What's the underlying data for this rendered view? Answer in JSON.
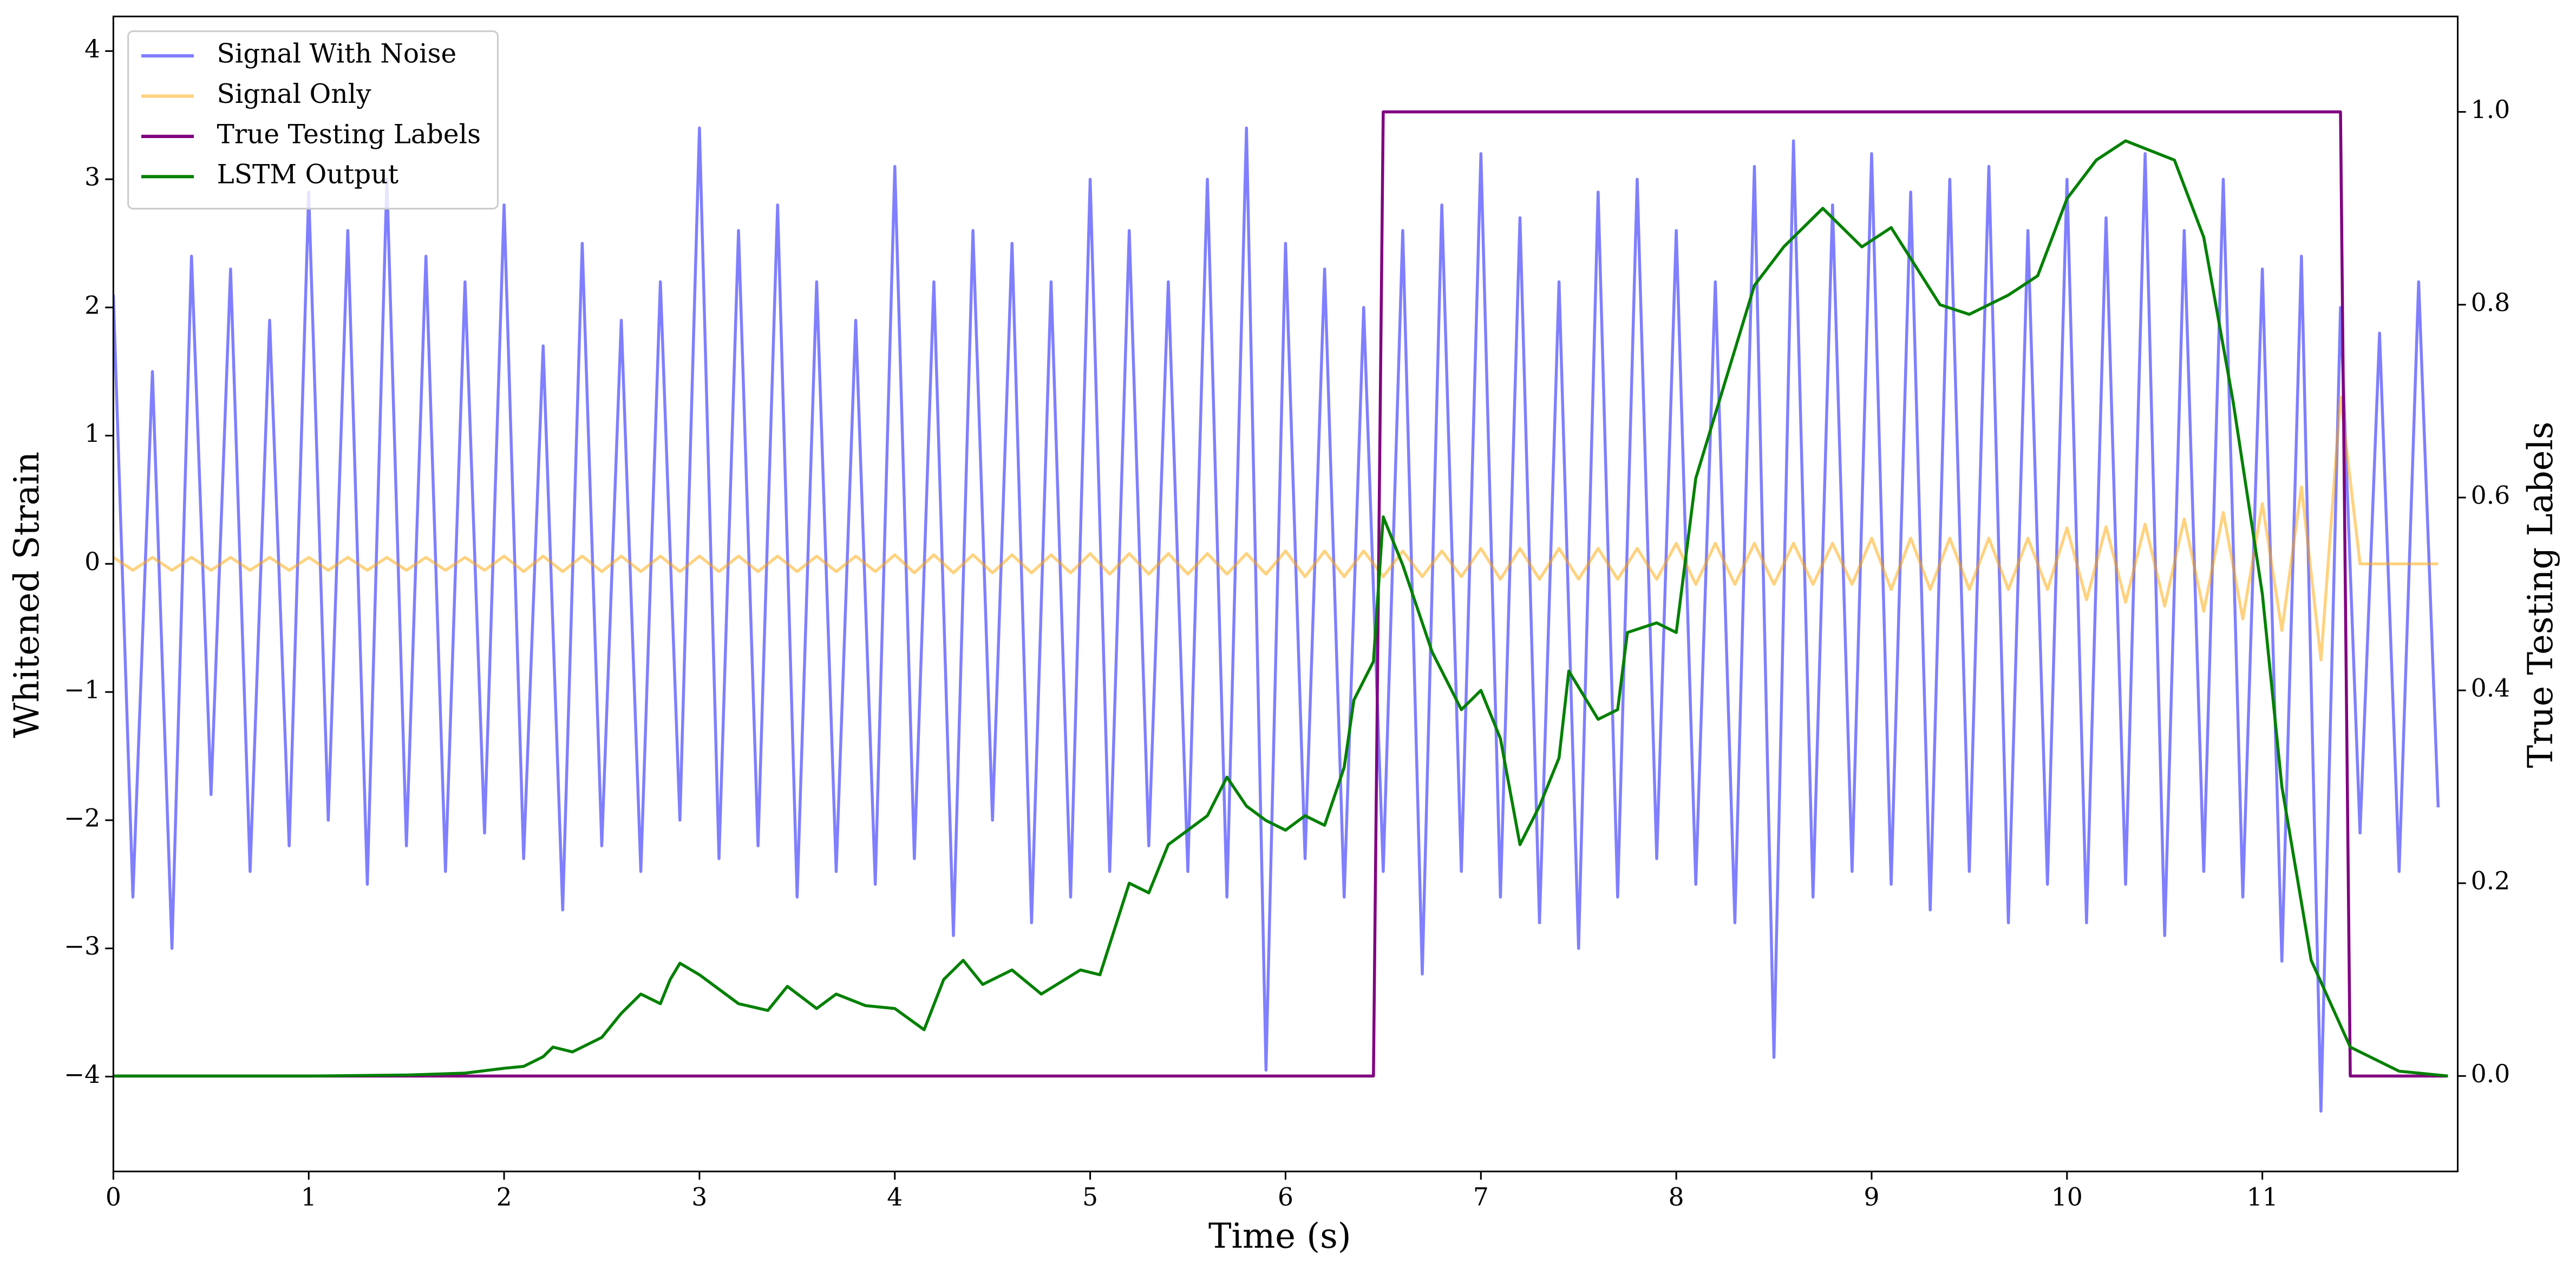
{
  "chart_data": {
    "type": "line",
    "xlabel": "Time (s)",
    "ylabel": "Whitened Strain",
    "y2label": "True Testing Labels",
    "x": [
      0,
      0.1,
      0.2,
      0.3,
      0.4,
      0.5,
      0.6,
      0.7,
      0.8,
      0.9,
      1,
      1.1,
      1.2,
      1.3,
      1.4,
      1.5,
      1.6,
      1.7,
      1.8,
      1.9,
      2,
      2.1,
      2.2,
      2.3,
      2.4,
      2.5,
      2.6,
      2.7,
      2.8,
      2.9,
      3,
      3.1,
      3.2,
      3.3,
      3.4,
      3.5,
      3.6,
      3.7,
      3.8,
      3.9,
      4,
      4.1,
      4.2,
      4.3,
      4.4,
      4.5,
      4.6,
      4.7,
      4.8,
      4.9,
      5,
      5.1,
      5.2,
      5.3,
      5.4,
      5.5,
      5.6,
      5.7,
      5.8,
      5.9,
      6,
      6.1,
      6.2,
      6.3,
      6.4,
      6.5,
      6.6,
      6.7,
      6.8,
      6.9,
      7,
      7.1,
      7.2,
      7.3,
      7.4,
      7.5,
      7.6,
      7.7,
      7.8,
      7.9,
      8,
      8.1,
      8.2,
      8.3,
      8.4,
      8.5,
      8.6,
      8.7,
      8.8,
      8.9,
      9,
      9.1,
      9.2,
      9.3,
      9.4,
      9.5,
      9.6,
      9.7,
      9.8,
      9.9,
      10,
      10.1,
      10.2,
      10.3,
      10.4,
      10.5,
      10.6,
      10.7,
      10.8,
      10.9,
      11,
      11.1,
      11.2,
      11.3,
      11.4,
      11.5,
      11.6,
      11.7,
      11.8,
      11.9
    ],
    "series": [
      {
        "name": "Signal With Noise",
        "color": "#0000ff",
        "alpha": 0.5,
        "values": [
          2.1,
          -2.6,
          1.5,
          -3.0,
          2.4,
          -1.8,
          2.3,
          -2.4,
          1.9,
          -2.2,
          2.9,
          -2.0,
          2.6,
          -2.5,
          3.0,
          -2.2,
          2.4,
          -2.4,
          2.2,
          -2.1,
          2.8,
          -2.3,
          1.7,
          -2.7,
          2.5,
          -2.2,
          1.9,
          -2.4,
          2.2,
          -2.0,
          3.4,
          -2.3,
          2.6,
          -2.2,
          2.8,
          -2.6,
          2.2,
          -2.4,
          1.9,
          -2.5,
          3.1,
          -2.3,
          2.2,
          -2.9,
          2.6,
          -2.0,
          2.5,
          -2.8,
          2.2,
          -2.6,
          3.0,
          -2.4,
          2.6,
          -2.2,
          2.2,
          -2.4,
          3.0,
          -2.6,
          3.4,
          -3.95,
          2.5,
          -2.3,
          2.3,
          -2.6,
          2.0,
          -2.4,
          2.6,
          -3.2,
          2.8,
          -2.4,
          3.2,
          -2.6,
          2.7,
          -2.8,
          2.2,
          -3.0,
          2.9,
          -2.6,
          3.0,
          -2.3,
          2.6,
          -2.5,
          2.2,
          -2.8,
          3.1,
          -3.85,
          3.3,
          -2.6,
          2.8,
          -2.4,
          3.2,
          -2.5,
          2.9,
          -2.7,
          3.0,
          -2.4,
          3.1,
          -2.8,
          2.6,
          -2.5,
          3.0,
          -2.8,
          2.7,
          -2.5,
          3.2,
          -2.9,
          2.6,
          -2.4,
          3.0,
          -2.6,
          2.3,
          -3.1,
          2.4,
          -4.27,
          2.0,
          -2.1,
          1.8,
          -2.4,
          2.2,
          -1.9
        ]
      },
      {
        "name": "Signal Only",
        "color": "#ffa500",
        "alpha": 0.5,
        "values": [
          0.05,
          -0.05,
          0.05,
          -0.05,
          0.05,
          -0.05,
          0.05,
          -0.05,
          0.05,
          -0.05,
          0.05,
          -0.05,
          0.05,
          -0.05,
          0.05,
          -0.05,
          0.05,
          -0.05,
          0.05,
          -0.05,
          0.06,
          -0.06,
          0.06,
          -0.06,
          0.06,
          -0.06,
          0.06,
          -0.06,
          0.06,
          -0.06,
          0.06,
          -0.06,
          0.06,
          -0.06,
          0.06,
          -0.06,
          0.06,
          -0.06,
          0.06,
          -0.06,
          0.07,
          -0.07,
          0.07,
          -0.07,
          0.07,
          -0.07,
          0.07,
          -0.07,
          0.07,
          -0.07,
          0.08,
          -0.08,
          0.08,
          -0.08,
          0.08,
          -0.08,
          0.08,
          -0.08,
          0.08,
          -0.08,
          0.1,
          -0.1,
          0.1,
          -0.1,
          0.1,
          -0.1,
          0.1,
          -0.1,
          0.1,
          -0.1,
          0.12,
          -0.12,
          0.12,
          -0.12,
          0.12,
          -0.12,
          0.12,
          -0.12,
          0.12,
          -0.12,
          0.16,
          -0.16,
          0.16,
          -0.16,
          0.16,
          -0.16,
          0.16,
          -0.16,
          0.16,
          -0.16,
          0.2,
          -0.2,
          0.2,
          -0.2,
          0.2,
          -0.2,
          0.2,
          -0.2,
          0.2,
          -0.2,
          0.28,
          -0.28,
          0.29,
          -0.3,
          0.31,
          -0.33,
          0.35,
          -0.37,
          0.4,
          -0.43,
          0.47,
          -0.52,
          0.6,
          -0.75,
          1.3,
          0,
          0,
          0,
          0,
          0
        ]
      },
      {
        "name": "True Testing Labels",
        "color": "#800080",
        "axis": "y2",
        "x": [
          0,
          6.45,
          6.5,
          11.4,
          11.45,
          11.95
        ],
        "values": [
          0,
          0,
          1,
          1,
          0,
          0
        ]
      },
      {
        "name": "LSTM Output",
        "color": "#008000",
        "axis": "y2",
        "x": [
          0,
          1,
          1.5,
          1.8,
          2.0,
          2.1,
          2.2,
          2.25,
          2.35,
          2.5,
          2.6,
          2.7,
          2.8,
          2.85,
          2.9,
          3.0,
          3.2,
          3.35,
          3.45,
          3.6,
          3.7,
          3.85,
          4.0,
          4.15,
          4.25,
          4.35,
          4.45,
          4.6,
          4.75,
          4.95,
          5.05,
          5.2,
          5.3,
          5.4,
          5.5,
          5.6,
          5.7,
          5.8,
          5.9,
          6.0,
          6.1,
          6.2,
          6.3,
          6.35,
          6.45,
          6.5,
          6.6,
          6.75,
          6.9,
          7.0,
          7.1,
          7.2,
          7.3,
          7.4,
          7.45,
          7.6,
          7.7,
          7.75,
          7.9,
          8.0,
          8.1,
          8.25,
          8.4,
          8.55,
          8.75,
          8.95,
          9.1,
          9.35,
          9.5,
          9.7,
          9.85,
          10.0,
          10.15,
          10.3,
          10.55,
          10.7,
          10.85,
          11.0,
          11.1,
          11.25,
          11.45,
          11.7,
          11.95
        ],
        "values": [
          0,
          0,
          0.001,
          0.003,
          0.008,
          0.01,
          0.02,
          0.03,
          0.025,
          0.04,
          0.065,
          0.085,
          0.075,
          0.1,
          0.117,
          0.105,
          0.075,
          0.068,
          0.093,
          0.07,
          0.085,
          0.073,
          0.07,
          0.048,
          0.1,
          0.12,
          0.095,
          0.11,
          0.085,
          0.11,
          0.105,
          0.2,
          0.19,
          0.24,
          0.255,
          0.27,
          0.31,
          0.28,
          0.265,
          0.255,
          0.27,
          0.26,
          0.32,
          0.39,
          0.43,
          0.58,
          0.53,
          0.44,
          0.38,
          0.4,
          0.35,
          0.24,
          0.28,
          0.33,
          0.42,
          0.37,
          0.38,
          0.46,
          0.47,
          0.46,
          0.62,
          0.72,
          0.82,
          0.86,
          0.9,
          0.86,
          0.88,
          0.8,
          0.79,
          0.81,
          0.83,
          0.91,
          0.95,
          0.97,
          0.95,
          0.87,
          0.7,
          0.5,
          0.3,
          0.12,
          0.03,
          0.005,
          0
        ]
      }
    ],
    "xlim": [
      0,
      12
    ],
    "xticks": [
      0,
      1,
      2,
      3,
      4,
      5,
      6,
      7,
      8,
      9,
      10,
      11
    ],
    "ylim": [
      -4.74,
      4.27
    ],
    "yticks": [
      {
        "value": -4,
        "label": "−4"
      },
      {
        "value": -3,
        "label": "−3"
      },
      {
        "value": -2,
        "label": "−2"
      },
      {
        "value": -1,
        "label": "−1"
      },
      0,
      1,
      2,
      3,
      4
    ],
    "y2lim": [
      -0.099,
      1.099
    ],
    "y2ticks": [
      {
        "value": 0,
        "label": "0.0"
      },
      {
        "value": 0.2,
        "label": "0.2"
      },
      {
        "value": 0.4,
        "label": "0.4"
      },
      {
        "value": 0.6,
        "label": "0.6"
      },
      {
        "value": 0.8,
        "label": "0.8"
      },
      {
        "value": 1,
        "label": "1.0"
      }
    ],
    "legend": "upper left"
  }
}
